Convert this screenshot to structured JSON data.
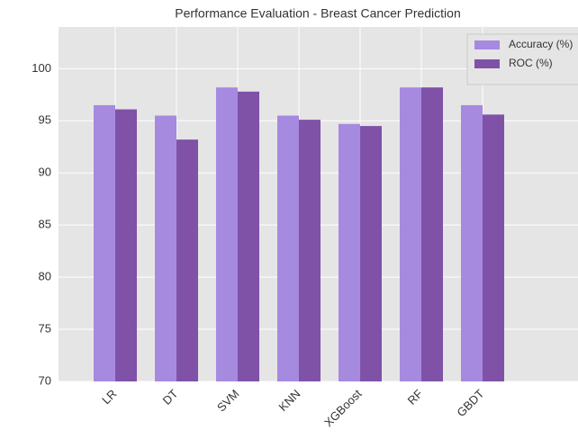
{
  "chart_data": {
    "type": "bar",
    "title": "Performance Evaluation - Breast Cancer Prediction",
    "categories": [
      "LR",
      "DT",
      "SVM",
      "KNN",
      "XGBoost",
      "RF",
      "GBDT"
    ],
    "series": [
      {
        "name": "Accuracy (%)",
        "color": "#a68ae0",
        "values": [
          96.5,
          95.5,
          98.2,
          95.5,
          94.7,
          98.2,
          96.5
        ]
      },
      {
        "name": "ROC (%)",
        "color": "#7f52a8",
        "values": [
          96.1,
          93.2,
          97.8,
          95.1,
          94.5,
          98.2,
          95.6
        ]
      }
    ],
    "ylim": [
      70,
      104
    ],
    "yticks": [
      70,
      75,
      80,
      85,
      90,
      95,
      100
    ],
    "grid": true,
    "legend": "upper right"
  }
}
